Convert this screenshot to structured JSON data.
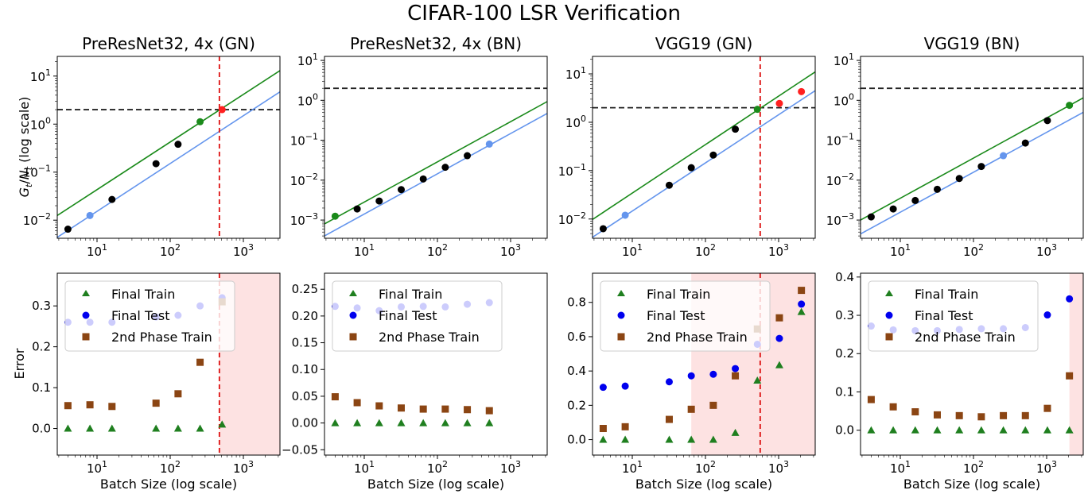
{
  "figure_title": "CIFAR-100 LSR Verification",
  "shared": {
    "top_ylabel": "G_t/N_t (log scale)",
    "bottom_ylabel": "Error",
    "xlabel": "Batch Size (log scale)",
    "x_tick_labels": [
      "10",
      "10",
      "10"
    ],
    "x_tick_exponents": [
      "1",
      "2",
      "3"
    ],
    "legend": [
      "Final Train",
      "Final Test",
      "2nd Phase Train"
    ],
    "colors": {
      "train": "#1f7f1f",
      "test": "#0000ee",
      "phase2": "#8b4513",
      "green_line": "#1a8a1a",
      "blue_line": "#6495ed",
      "black_points": "#000000",
      "red_points": "#ff2020",
      "threshold_dashed": "#222222",
      "critical_dashed": "#dd1111",
      "shade": "#fde2e2"
    }
  },
  "chart_data": [
    {
      "type": "scatter",
      "title": "PreResNet32, 4x (GN)",
      "top": {
        "xscale": "log",
        "yscale": "log",
        "xlim": [
          2.86,
          3162
        ],
        "ylim": [
          0.0042,
          25.7
        ],
        "ytick_exponents": [
          "1",
          "0",
          "−1",
          "−2"
        ],
        "yticks": [
          10,
          1,
          0.1,
          0.01
        ],
        "threshold": 2.0,
        "critical_batch": 470,
        "green_line": {
          "x": [
            2.86,
            3162
          ],
          "y": [
            0.0125,
            13.0
          ]
        },
        "blue_line": {
          "x": [
            2.86,
            3162
          ],
          "y": [
            0.0044,
            4.7
          ]
        },
        "black_points": {
          "x": [
            4,
            16,
            64,
            128
          ],
          "y": [
            0.0065,
            0.027,
            0.15,
            0.38
          ]
        },
        "green_points": {
          "x": [
            256
          ],
          "y": [
            1.12
          ]
        },
        "blue_points": {
          "x": [
            8
          ],
          "y": [
            0.0125
          ]
        },
        "red_points": {
          "x": [
            512
          ],
          "y": [
            2.0
          ]
        }
      },
      "bottom": {
        "xscale": "log",
        "ylim": [
          -0.065,
          0.38
        ],
        "yticks": [
          0.0,
          0.1,
          0.2,
          0.3
        ],
        "ytick_labels": [
          "0.0",
          "0.1",
          "0.2",
          "0.3"
        ],
        "shade_from": 470,
        "critical_batch": 470,
        "x": [
          4,
          8,
          16,
          64,
          128,
          256,
          512
        ],
        "final_train": [
          0.0,
          0.0,
          0.0,
          0.0,
          0.0,
          0.0,
          0.01
        ],
        "final_test": [
          0.26,
          0.26,
          0.26,
          0.273,
          0.277,
          0.3,
          0.32
        ],
        "phase2_train": [
          0.056,
          0.058,
          0.054,
          0.062,
          0.085,
          0.162,
          0.31
        ]
      }
    },
    {
      "type": "scatter",
      "title": "PreResNet32, 4x (BN)",
      "top": {
        "xscale": "log",
        "yscale": "log",
        "xlim": [
          2.86,
          3162
        ],
        "ylim": [
          0.00035,
          12.6
        ],
        "ytick_exponents": [
          "1",
          "0",
          "−1",
          "−2",
          "−3"
        ],
        "yticks": [
          10,
          1,
          0.1,
          0.01,
          0.001
        ],
        "threshold": 2.0,
        "critical_batch": null,
        "green_line": {
          "x": [
            2.86,
            3162
          ],
          "y": [
            0.0008,
            0.93
          ]
        },
        "blue_line": {
          "x": [
            2.86,
            3162
          ],
          "y": [
            0.0004,
            0.47
          ]
        },
        "black_points": {
          "x": [
            8,
            16,
            32,
            64,
            128,
            256
          ],
          "y": [
            0.0019,
            0.003,
            0.0058,
            0.0107,
            0.021,
            0.041
          ]
        },
        "green_points": {
          "x": [
            4
          ],
          "y": [
            0.00125
          ]
        },
        "blue_points": {
          "x": [
            512
          ],
          "y": [
            0.08
          ]
        },
        "red_points": {
          "x": [],
          "y": []
        }
      },
      "bottom": {
        "xscale": "log",
        "ylim": [
          -0.06,
          0.28
        ],
        "yticks": [
          -0.05,
          0.0,
          0.05,
          0.1,
          0.15,
          0.2,
          0.25
        ],
        "ytick_labels": [
          "−0.05",
          "0.00",
          "0.05",
          "0.10",
          "0.15",
          "0.20",
          "0.25"
        ],
        "shade_from": null,
        "critical_batch": null,
        "x": [
          4,
          8,
          16,
          32,
          64,
          128,
          256,
          512
        ],
        "final_train": [
          0.0,
          0.0,
          0.0,
          0.0,
          0.0,
          0.0,
          0.0,
          0.0
        ],
        "final_test": [
          0.218,
          0.215,
          0.21,
          0.217,
          0.218,
          0.217,
          0.222,
          0.225
        ],
        "phase2_train": [
          0.049,
          0.038,
          0.032,
          0.028,
          0.026,
          0.026,
          0.025,
          0.023
        ]
      }
    },
    {
      "type": "scatter",
      "title": "VGG19 (GN)",
      "top": {
        "xscale": "log",
        "yscale": "log",
        "xlim": [
          2.86,
          3162
        ],
        "ylim": [
          0.004,
          23
        ],
        "ytick_exponents": [
          "1",
          "0",
          "−1",
          "−2"
        ],
        "yticks": [
          10,
          1,
          0.1,
          0.01
        ],
        "threshold": 2.0,
        "critical_batch": 560,
        "green_line": {
          "x": [
            2.86,
            3162
          ],
          "y": [
            0.0098,
            11.0
          ]
        },
        "blue_line": {
          "x": [
            2.86,
            3162
          ],
          "y": [
            0.0042,
            4.5
          ]
        },
        "black_points": {
          "x": [
            4,
            32,
            64,
            128,
            256
          ],
          "y": [
            0.0063,
            0.05,
            0.115,
            0.21,
            0.72
          ]
        },
        "green_points": {
          "x": [
            512
          ],
          "y": [
            1.85
          ]
        },
        "blue_points": {
          "x": [
            8
          ],
          "y": [
            0.012
          ]
        },
        "red_points": {
          "x": [
            1024,
            2048
          ],
          "y": [
            2.45,
            4.3
          ]
        }
      },
      "bottom": {
        "xscale": "log",
        "ylim": [
          -0.09,
          0.97
        ],
        "yticks": [
          0.0,
          0.2,
          0.4,
          0.6,
          0.8
        ],
        "ytick_labels": [
          "0.0",
          "0.2",
          "0.4",
          "0.6",
          "0.8"
        ],
        "shade_from": 64,
        "critical_batch": 560,
        "x": [
          4,
          8,
          32,
          64,
          128,
          256,
          512,
          1024,
          2048
        ],
        "final_train": [
          0.0,
          0.0,
          0.0,
          0.0,
          0.0,
          0.04,
          0.345,
          0.435,
          0.745
        ],
        "final_test": [
          0.305,
          0.312,
          0.337,
          0.372,
          0.381,
          0.414,
          0.556,
          0.59,
          0.79
        ],
        "phase2_train": [
          0.065,
          0.075,
          0.118,
          0.177,
          0.2,
          0.372,
          0.645,
          0.71,
          0.87
        ]
      }
    },
    {
      "type": "scatter",
      "title": "VGG19 (BN)",
      "top": {
        "xscale": "log",
        "yscale": "log",
        "xlim": [
          2.86,
          3162
        ],
        "ylim": [
          0.00035,
          12.6
        ],
        "ytick_exponents": [
          "1",
          "0",
          "−1",
          "−2",
          "−3"
        ],
        "yticks": [
          10,
          1,
          0.1,
          0.01,
          0.001
        ],
        "threshold": 2.0,
        "critical_batch": null,
        "green_line": {
          "x": [
            2.86,
            3162
          ],
          "y": [
            0.001,
            1.15
          ]
        },
        "blue_line": {
          "x": [
            2.86,
            3162
          ],
          "y": [
            0.00045,
            0.5
          ]
        },
        "black_points": {
          "x": [
            4,
            8,
            16,
            32,
            64,
            128,
            512,
            1024
          ],
          "y": [
            0.0012,
            0.0019,
            0.0031,
            0.0059,
            0.011,
            0.022,
            0.085,
            0.31
          ]
        },
        "green_points": {
          "x": [
            2048
          ],
          "y": [
            0.75
          ]
        },
        "blue_points": {
          "x": [
            256
          ],
          "y": [
            0.041
          ]
        },
        "red_points": {
          "x": [],
          "y": []
        }
      },
      "bottom": {
        "xscale": "log",
        "ylim": [
          -0.065,
          0.41
        ],
        "yticks": [
          0.0,
          0.1,
          0.2,
          0.3,
          0.4
        ],
        "ytick_labels": [
          "0.0",
          "0.1",
          "0.2",
          "0.3",
          "0.4"
        ],
        "shade_from": 2048,
        "critical_batch": null,
        "x": [
          4,
          8,
          16,
          32,
          64,
          128,
          256,
          512,
          1024,
          2048
        ],
        "final_train": [
          0.0,
          0.0,
          0.0,
          0.0,
          0.0,
          0.0,
          0.0,
          0.0,
          0.0,
          0.0
        ],
        "final_test": [
          0.272,
          0.262,
          0.26,
          0.26,
          0.263,
          0.265,
          0.265,
          0.268,
          0.301,
          0.343
        ],
        "phase2_train": [
          0.08,
          0.061,
          0.048,
          0.04,
          0.038,
          0.035,
          0.038,
          0.038,
          0.057,
          0.142
        ]
      }
    }
  ]
}
